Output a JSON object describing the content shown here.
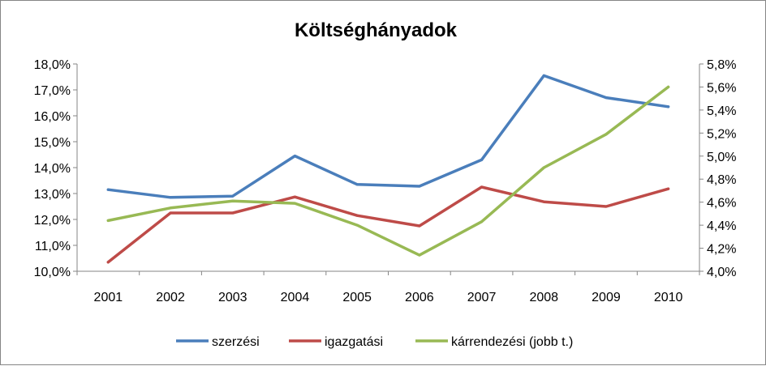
{
  "chart_data": {
    "type": "line",
    "title": "Költséghányadok",
    "categories": [
      "2001",
      "2002",
      "2003",
      "2004",
      "2005",
      "2006",
      "2007",
      "2008",
      "2009",
      "2010"
    ],
    "y_left": {
      "ylim": [
        10.0,
        18.0
      ],
      "ticks": [
        "10,0%",
        "11,0%",
        "12,0%",
        "13,0%",
        "14,0%",
        "15,0%",
        "16,0%",
        "17,0%",
        "18,0%"
      ]
    },
    "y_right": {
      "ylim": [
        4.0,
        5.8
      ],
      "ticks": [
        "4,0%",
        "4,2%",
        "4,4%",
        "4,6%",
        "4,8%",
        "5,0%",
        "5,2%",
        "5,4%",
        "5,6%",
        "5,8%"
      ]
    },
    "series": [
      {
        "name": "szerzési",
        "axis": "left",
        "color": "#4a7ebb",
        "values": [
          13.15,
          12.85,
          12.9,
          14.45,
          13.35,
          13.28,
          14.3,
          17.55,
          16.7,
          16.35
        ]
      },
      {
        "name": "igazgatási",
        "axis": "left",
        "color": "#be4b48",
        "values": [
          10.35,
          12.25,
          12.25,
          12.87,
          12.15,
          11.75,
          13.25,
          12.68,
          12.5,
          13.18
        ]
      },
      {
        "name": "kárrendezési (jobb t.)",
        "axis": "right",
        "color": "#98b954",
        "values": [
          4.44,
          4.55,
          4.61,
          4.59,
          4.4,
          4.14,
          4.43,
          4.9,
          5.19,
          5.6
        ]
      }
    ],
    "legend_position": "bottom",
    "grid": false
  }
}
